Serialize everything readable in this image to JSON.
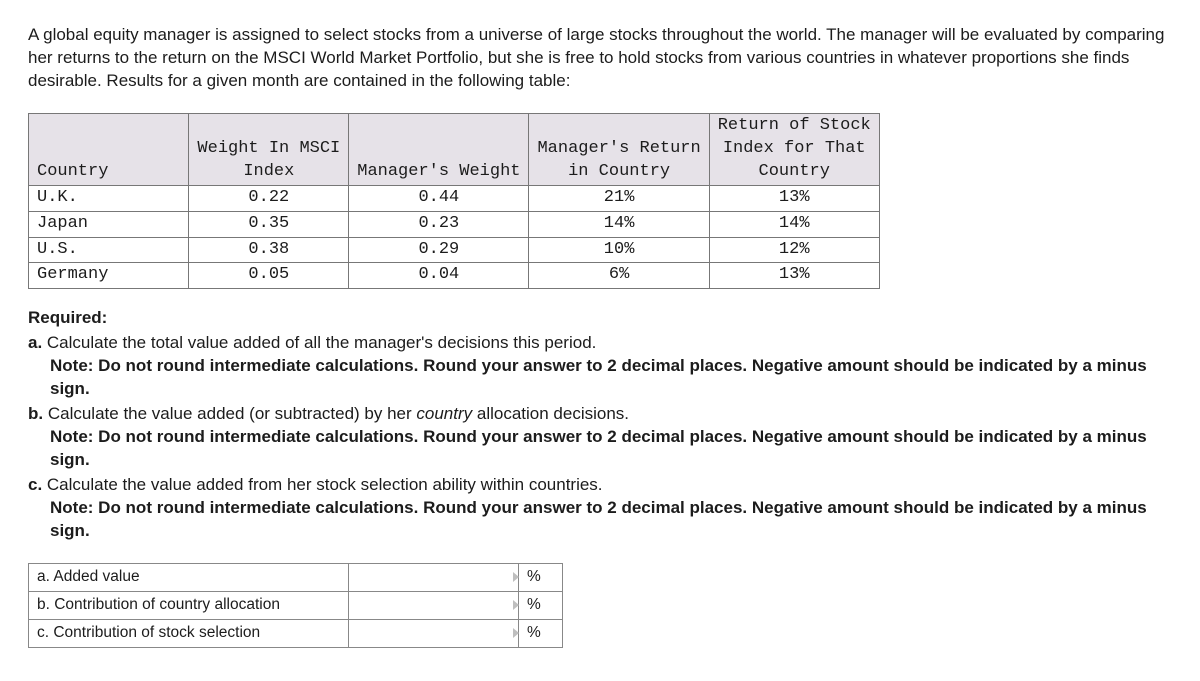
{
  "intro": "A global equity manager is assigned to select stocks from a universe of large stocks throughout the world. The manager will be evaluated by comparing her returns to the return on the MSCI World Market Portfolio, but she is free to hold stocks from various countries in whatever proportions she finds desirable. Results for a given month are contained in the following table:",
  "data_table": {
    "font_family": "Courier New",
    "header_bg": "#e6e2e8",
    "border_color": "#777777",
    "columns": [
      "Country",
      "Weight In MSCI\nIndex",
      "Manager's Weight",
      "Manager's Return\nin Country",
      "Return of Stock\nIndex for That\nCountry"
    ],
    "rows": [
      [
        "U.K.",
        "0.22",
        "0.44",
        "21%",
        "13%"
      ],
      [
        "Japan",
        "0.35",
        "0.23",
        "14%",
        "14%"
      ],
      [
        "U.S.",
        "0.38",
        "0.29",
        "10%",
        "12%"
      ],
      [
        "Germany",
        "0.05",
        "0.04",
        "6%",
        "13%"
      ]
    ]
  },
  "required": {
    "title": "Required:",
    "items": [
      {
        "marker": "a.",
        "ask_pre": "Calculate the total value added of all the manager's decisions this period.",
        "italic": "",
        "ask_post": "",
        "note": "Note: Do not round intermediate calculations. Round your answer to 2 decimal places. Negative amount should be indicated by a minus sign."
      },
      {
        "marker": "b.",
        "ask_pre": "Calculate the value added (or subtracted) by her ",
        "italic": "country",
        "ask_post": " allocation decisions.",
        "note": "Note: Do not round intermediate calculations. Round your answer to 2 decimal places. Negative amount should be indicated by a minus sign."
      },
      {
        "marker": "c.",
        "ask_pre": "Calculate the value added from her stock selection ability within countries.",
        "italic": "",
        "ask_post": "",
        "note": "Note: Do not round intermediate calculations. Round your answer to 2 decimal places. Negative amount should be indicated by a minus sign."
      }
    ]
  },
  "answer_table": {
    "border_color": "#888888",
    "rows": [
      {
        "label": "a. Added value",
        "unit": "%"
      },
      {
        "label": "b. Contribution of country allocation",
        "unit": "%"
      },
      {
        "label": "c. Contribution of stock selection",
        "unit": "%"
      }
    ]
  }
}
